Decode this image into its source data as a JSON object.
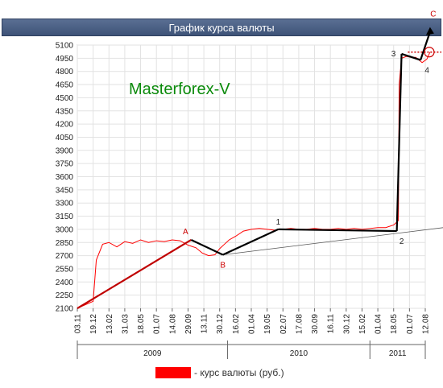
{
  "title": "График курса валюты",
  "watermark": "Masterforex-V",
  "legend": {
    "label": "- курс валюты (руб.)",
    "color": "#ff0000"
  },
  "point_labels": {
    "A": "A",
    "B": "B",
    "C": "C",
    "p1": "1",
    "p2": "2",
    "p3": "3",
    "p4": "4"
  },
  "colors": {
    "series": "#ff0000",
    "trend": "#000000",
    "trend_first": "#c00000",
    "title_bg": "#4a5f85",
    "watermark": "#0a8a0a"
  },
  "chart_data": {
    "type": "line",
    "title": "График курса валюты",
    "ylim": [
      2100,
      5100
    ],
    "y_ticks": [
      2100,
      2250,
      2400,
      2550,
      2700,
      2850,
      3000,
      3150,
      3300,
      3450,
      3600,
      3750,
      3900,
      4050,
      4200,
      4350,
      4500,
      4650,
      4800,
      4950,
      5100
    ],
    "x_ticks": [
      "03.11",
      "19.12",
      "13.02",
      "31.03",
      "18.05",
      "01.07",
      "14.08",
      "29.09",
      "13.11",
      "30.12",
      "16.02",
      "01.04",
      "19.05",
      "02.07",
      "17.08",
      "30.09",
      "16.11",
      "30.12",
      "15.02",
      "01.04",
      "18.05",
      "01.07",
      "12.08"
    ],
    "year_labels": [
      "2009",
      "2010",
      "2011"
    ],
    "grid": true,
    "legend_position": "bottom",
    "series": [
      {
        "name": "курс валюты (руб.)",
        "color": "#ff0000",
        "x": [
          0,
          1.0,
          1.2,
          1.6,
          2.0,
          2.5,
          3.0,
          3.5,
          4.0,
          4.5,
          5.0,
          5.5,
          6.0,
          6.5,
          7.0,
          7.5,
          7.9,
          8.3,
          8.7,
          9.0,
          9.3,
          9.6,
          10.0,
          10.5,
          11.0,
          11.5,
          12.0,
          12.5,
          13.0,
          13.5,
          14.0,
          14.5,
          15.0,
          15.5,
          16.0,
          16.5,
          17.0,
          17.5,
          18.0,
          18.5,
          19.0,
          19.5,
          20.0,
          20.3,
          20.35,
          20.5,
          20.8,
          21.1,
          21.4,
          21.8,
          22.1,
          22.3
        ],
        "y": [
          2100,
          2180,
          2650,
          2830,
          2850,
          2800,
          2860,
          2840,
          2880,
          2850,
          2870,
          2860,
          2880,
          2870,
          2820,
          2790,
          2730,
          2700,
          2710,
          2780,
          2830,
          2880,
          2920,
          2980,
          3000,
          3010,
          3000,
          2990,
          3000,
          3010,
          3000,
          3000,
          3010,
          3000,
          3000,
          3010,
          3000,
          3010,
          3000,
          3010,
          3020,
          3020,
          3050,
          3100,
          4650,
          4950,
          4970,
          4960,
          4960,
          4900,
          4940,
          5020
        ]
      }
    ],
    "annotations": {
      "trend_lines": [
        {
          "x": [
            0,
            7.2
          ],
          "y": [
            2100,
            2880
          ]
        },
        {
          "x": [
            7.2,
            9.2
          ],
          "y": [
            2880,
            2710
          ]
        },
        {
          "x": [
            9.2,
            12.7
          ],
          "y": [
            2710,
            3000
          ]
        },
        {
          "x": [
            12.7,
            20.2
          ],
          "y": [
            3000,
            2980
          ]
        },
        {
          "x": [
            20.2,
            20.5
          ],
          "y": [
            2980,
            5000
          ]
        },
        {
          "x": [
            20.5,
            21.7
          ],
          "y": [
            5000,
            4930
          ]
        },
        {
          "x": [
            21.7,
            22.3
          ],
          "y": [
            4930,
            5250
          ]
        }
      ],
      "support_line": {
        "x": [
          9.2,
          24.5
        ],
        "y": [
          2710,
          3050
        ]
      },
      "resistance_level": 5020,
      "labeled_points": [
        {
          "key": "A",
          "x": 7.2,
          "y": 2880
        },
        {
          "key": "B",
          "x": 9.2,
          "y": 2710
        },
        {
          "key": "p1",
          "x": 12.7,
          "y": 3000
        },
        {
          "key": "p2",
          "x": 20.2,
          "y": 2980
        },
        {
          "key": "p3",
          "x": 20.5,
          "y": 5000
        },
        {
          "key": "p4",
          "x": 21.7,
          "y": 4930
        },
        {
          "key": "C",
          "x": 22.3,
          "y": 5250
        }
      ]
    }
  }
}
